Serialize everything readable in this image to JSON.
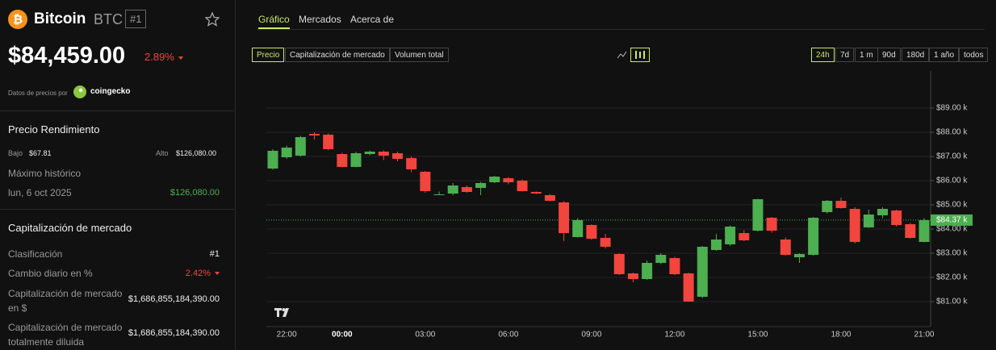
{
  "header": {
    "name": "Bitcoin",
    "symbol": "BTC",
    "rank": "#1",
    "price": "$84,459.00",
    "change": "2.89%",
    "source_label": "Datos de precios por",
    "source": "coingecko"
  },
  "performance": {
    "title": "Precio Rendimiento",
    "low_label": "Bajo",
    "low": "$67.81",
    "high_label": "Alto",
    "high": "$126,080.00",
    "ath_label": "Máximo histórico",
    "ath_date": "lun, 6 oct 2025",
    "ath": "$126,080.00"
  },
  "market_cap": {
    "title": "Capitalización de mercado",
    "rows": [
      [
        "Clasificación",
        "#1"
      ],
      [
        "Cambio diario en %",
        "2.42%"
      ],
      [
        "Capitalización de mercado en $",
        "$1,686,855,184,390.00"
      ],
      [
        "Capitalización de mercado totalmente diluida",
        "$1,686,855,184,390.00"
      ]
    ]
  },
  "tabs": [
    "Gráfico",
    "Mercados",
    "Acerca de"
  ],
  "metrics": [
    "Precio",
    "Capitalización de mercado",
    "Volumen total"
  ],
  "ranges": [
    "24h",
    "7d",
    "1 m",
    "90d",
    "180d",
    "1 año",
    "todos"
  ],
  "chart_data": {
    "type": "candlestick",
    "categories": [
      null,
      "22:00",
      null,
      null,
      null,
      "00:00",
      null,
      null,
      null,
      null,
      null,
      "03:00",
      null,
      null,
      null,
      null,
      null,
      "06:00",
      null,
      null,
      null,
      null,
      null,
      "09:00",
      null,
      null,
      null,
      null,
      null,
      "12:00",
      null,
      null,
      null,
      null,
      null,
      "15:00",
      null,
      null,
      null,
      null,
      null,
      "18:00",
      null,
      null,
      null,
      null,
      null,
      "21:00"
    ],
    "open": [
      86500,
      86967,
      87033,
      87933,
      87900,
      87100,
      86567,
      87100,
      87200,
      87133,
      86933,
      86367,
      85400,
      85467,
      85733,
      85700,
      85933,
      86100,
      86000,
      85533,
      85400,
      85100,
      83667,
      84167,
      83633,
      82967,
      82167,
      81933,
      82600,
      82800,
      82167,
      81200,
      83133,
      83367,
      83833,
      83933,
      84467,
      83567,
      82833,
      82933,
      84700,
      85167,
      84833,
      84067,
      84567,
      84767,
      84200,
      83467
    ],
    "high": [
      87300,
      87450,
      87850,
      88000,
      87950,
      87150,
      87200,
      87250,
      87250,
      87200,
      87000,
      86400,
      85550,
      85900,
      85800,
      85950,
      86200,
      86150,
      86050,
      85550,
      85450,
      85150,
      84450,
      84200,
      83800,
      83000,
      82200,
      82700,
      83000,
      82850,
      82200,
      83300,
      83800,
      84150,
      83950,
      85250,
      84500,
      83650,
      83000,
      84500,
      85200,
      85300,
      84900,
      84800,
      84900,
      84800,
      84250,
      84450
    ],
    "low": [
      86450,
      86900,
      87000,
      87700,
      87250,
      86550,
      86550,
      87050,
      86850,
      86800,
      86350,
      85500,
      85400,
      85400,
      85500,
      85400,
      85900,
      85850,
      85550,
      85450,
      85150,
      83500,
      83650,
      83550,
      83200,
      82100,
      81800,
      81900,
      82550,
      82100,
      81000,
      81150,
      83100,
      83300,
      83500,
      83900,
      83850,
      82900,
      82600,
      82900,
      84650,
      84850,
      83400,
      84050,
      84450,
      84100,
      83600,
      83450
    ],
    "close": [
      87233,
      87367,
      87800,
      87867,
      87300,
      86567,
      87133,
      87200,
      87033,
      86900,
      86467,
      85567,
      85433,
      85800,
      85533,
      85900,
      86167,
      85933,
      85567,
      85467,
      85167,
      83833,
      84367,
      83600,
      83267,
      82133,
      81933,
      82600,
      82933,
      82133,
      81000,
      83267,
      83567,
      84100,
      83533,
      85233,
      83933,
      82933,
      82967,
      84467,
      85167,
      84867,
      83467,
      84600,
      84833,
      84167,
      83633,
      84367
    ],
    "up_color": "#4caf50",
    "down_color": "#f2453d",
    "ylim": [
      80100,
      90200
    ],
    "yticks": [
      {
        "value": 81000,
        "label": "$81.00 k"
      },
      {
        "value": 82000,
        "label": "$82.00 k"
      },
      {
        "value": 83000,
        "label": "$83.00 k"
      },
      {
        "value": 84000,
        "label": "$84.00 k"
      },
      {
        "value": 85000,
        "label": "$85.00 k"
      },
      {
        "value": 86000,
        "label": "$86.00 k"
      },
      {
        "value": 87000,
        "label": "$87.00 k"
      },
      {
        "value": 88000,
        "label": "$88.00 k"
      },
      {
        "value": 89000,
        "label": "$89.00 k"
      }
    ],
    "current_price": {
      "value": 84370,
      "label": "$84.37 k"
    },
    "grid": true
  }
}
